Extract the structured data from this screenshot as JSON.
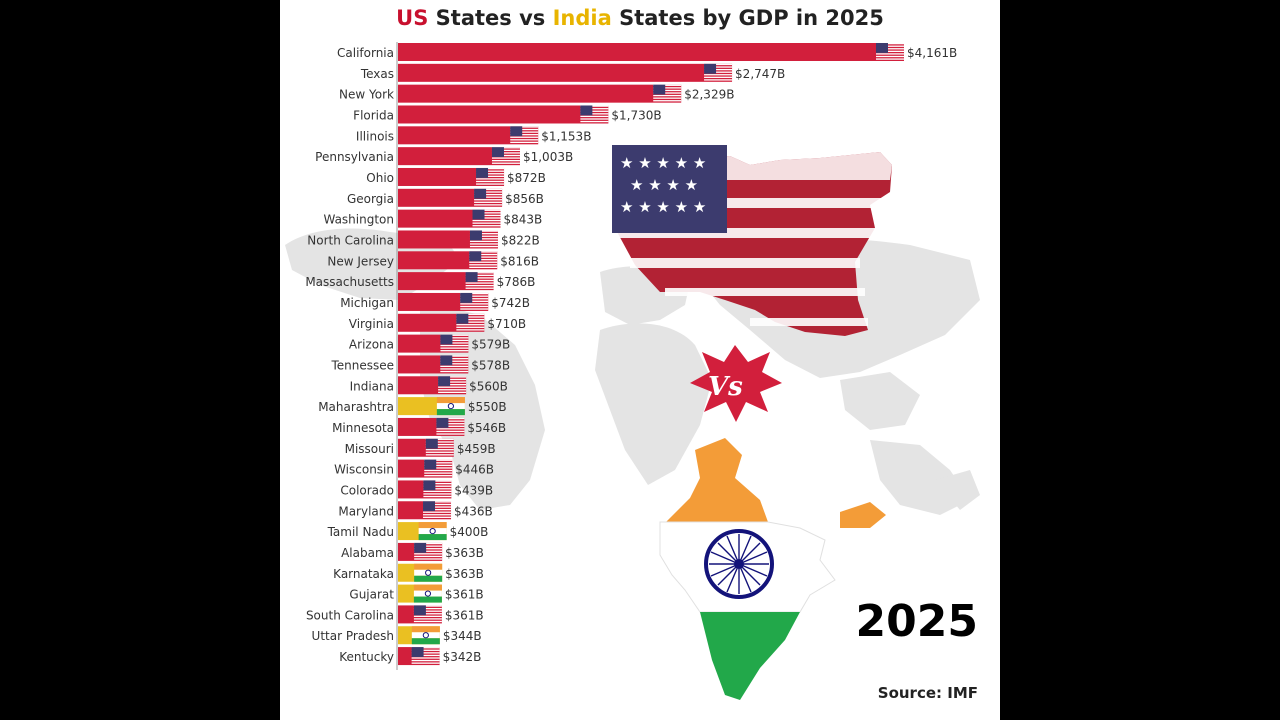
{
  "title": {
    "us": "US",
    "mid": " States vs ",
    "india": "India",
    "rest": " States by GDP in 2025"
  },
  "year": "2025",
  "source": "Source: IMF",
  "colors": {
    "us": "#d21f3c",
    "india": "#eac022",
    "map": "#e4e4e4"
  },
  "chart_data": {
    "type": "bar",
    "orientation": "horizontal",
    "title": "US States vs India States by GDP in 2025",
    "unit": "B",
    "categories": [
      "California",
      "Texas",
      "New York",
      "Florida",
      "Illinois",
      "Pennsylvania",
      "Ohio",
      "Georgia",
      "Washington",
      "North Carolina",
      "New Jersey",
      "Massachusetts",
      "Michigan",
      "Virginia",
      "Arizona",
      "Tennessee",
      "Indiana",
      "Maharashtra",
      "Minnesota",
      "Missouri",
      "Wisconsin",
      "Colorado",
      "Maryland",
      "Tamil Nadu",
      "Alabama",
      "Karnataka",
      "Gujarat",
      "South Carolina",
      "Uttar Pradesh",
      "Kentucky"
    ],
    "values": [
      4161,
      2747,
      2329,
      1730,
      1153,
      1003,
      872,
      856,
      843,
      822,
      816,
      786,
      742,
      710,
      579,
      578,
      560,
      550,
      546,
      459,
      446,
      439,
      436,
      400,
      363,
      363,
      361,
      361,
      344,
      342
    ],
    "labels": [
      "$4,161B",
      "$2,747B",
      "$2,329B",
      "$1,730B",
      "$1,153B",
      "$1,003B",
      "$872B",
      "$856B",
      "$843B",
      "$822B",
      "$816B",
      "$786B",
      "$742B",
      "$710B",
      "$579B",
      "$578B",
      "$560B",
      "$550B",
      "$546B",
      "$459B",
      "$446B",
      "$439B",
      "$436B",
      "$400B",
      "$363B",
      "$363B",
      "$361B",
      "$361B",
      "$344B",
      "$342B"
    ],
    "country": [
      "US",
      "US",
      "US",
      "US",
      "US",
      "US",
      "US",
      "US",
      "US",
      "US",
      "US",
      "US",
      "US",
      "US",
      "US",
      "US",
      "US",
      "India",
      "US",
      "US",
      "US",
      "US",
      "US",
      "India",
      "US",
      "India",
      "India",
      "US",
      "India",
      "US"
    ],
    "xlim": [
      0,
      4161
    ]
  }
}
